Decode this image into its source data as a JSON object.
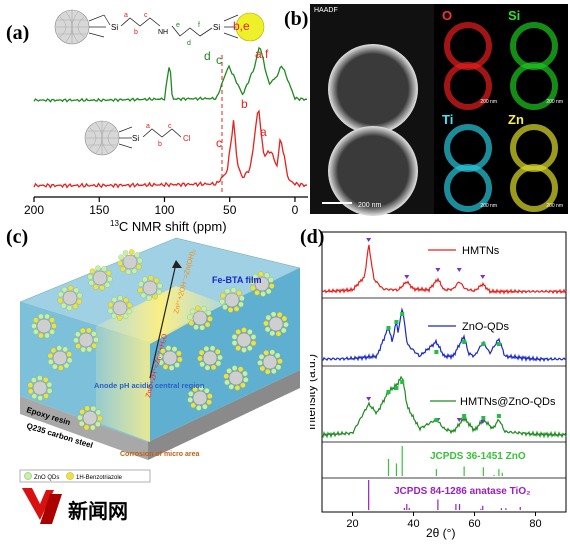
{
  "panel_a": {
    "letter": "(a)",
    "xlabel": "13C NMR shift (ppm)",
    "xlabel_sup": "13",
    "xlabel_main": "C NMR shift (ppm)",
    "ticks": [
      "200",
      "150",
      "100",
      "50",
      "0"
    ],
    "green_labels": {
      "d": "d",
      "c": "c",
      "be": "b,e",
      "af": "a,f"
    },
    "red_labels": {
      "c": "c",
      "b": "b",
      "a": "a"
    },
    "green_struct": {
      "a": "a",
      "b": "b",
      "c": "c",
      "e": "e",
      "d": "d",
      "f": "f",
      "si1": "Si",
      "si2": "Si",
      "nh": "NH"
    },
    "red_struct": {
      "si": "Si",
      "cl": "Cl",
      "a": "a",
      "b": "b",
      "c": "c"
    }
  },
  "panel_b": {
    "letter": "(b)",
    "haadf": "HAADF",
    "scale": "200 nm",
    "maps": [
      {
        "label": "O",
        "color": "#ff2020",
        "scale": "200 nm"
      },
      {
        "label": "Si",
        "color": "#20e020",
        "scale": "200 nm"
      },
      {
        "label": "Ti",
        "color": "#30e0f0",
        "scale": "200 nm"
      },
      {
        "label": "Zn",
        "color": "#f0f030",
        "scale": "200 nm"
      }
    ]
  },
  "panel_c": {
    "letter": "(c)",
    "fe_bta": "Fe-BTA film",
    "reaction1": "Zn²⁺+2OH⁻=Zn(OH)₂",
    "reaction2": "ZnO+2H⁺=Zn²⁺+H₂O",
    "epoxy": "Epoxy resin",
    "steel": "Q235 carbon steel",
    "anode": "Anode pH acidic central region",
    "corrosion": "Corrosion of micro area",
    "legend1": "ZnO QDs",
    "legend2": "1H-Benzotriazole",
    "watermark": "新闻网"
  },
  "panel_d": {
    "letter": "(d)",
    "ylabel": "Intensity (a.u.)",
    "xlabel": "2θ (°)",
    "ticks": [
      "20",
      "40",
      "60",
      "80"
    ],
    "legends": [
      "HMTNs",
      "ZnO-QDs",
      "HMTNs@ZnO-QDs"
    ],
    "ref_zno": "JCPDS 36-1451 ZnO",
    "ref_tio2": "JCPDS 84-1286 anatase TiO₂"
  },
  "colors": {
    "green": "#1e8a1e",
    "red": "#e8201c",
    "blue": "#1a28c8",
    "zno_ref": "#39c339",
    "tio2_ref": "#9a1fc2"
  },
  "chart_data": [
    {
      "type": "line",
      "title": "",
      "xlabel": "13C NMR shift (ppm)",
      "ylabel": "",
      "xlim": [
        200,
        -10
      ],
      "series": [
        {
          "name": "",
          "color": "green",
          "x": [
            200,
            150,
            100,
            96,
            94,
            60,
            51,
            48,
            40,
            31,
            27,
            20,
            14,
            10,
            0,
            -10
          ],
          "y": [
            0.03,
            0.03,
            0.05,
            0.68,
            0.05,
            0.06,
            0.6,
            0.48,
            0.12,
            0.58,
            0.95,
            0.3,
            0.42,
            0.62,
            0.06,
            0.04
          ]
        },
        {
          "name": "",
          "color": "red",
          "x": [
            200,
            150,
            100,
            60,
            52,
            47,
            44,
            40,
            34,
            28,
            24,
            18,
            14,
            11,
            5,
            0,
            -10
          ],
          "y": [
            0.03,
            0.03,
            0.04,
            0.05,
            0.2,
            0.82,
            0.28,
            0.12,
            0.25,
            1.0,
            0.4,
            0.45,
            0.25,
            0.62,
            0.1,
            0.05,
            0.03
          ]
        }
      ]
    },
    {
      "type": "line",
      "title": "",
      "xlabel": "2θ (°)",
      "ylabel": "Intensity (a.u.)",
      "xlim": [
        10,
        90
      ],
      "series": [
        {
          "name": "HMTNs",
          "x": [
            10,
            20,
            24,
            25.3,
            27,
            30,
            35,
            37.8,
            40,
            45,
            48,
            50,
            53,
            55,
            57,
            60,
            62.7,
            65,
            70,
            80,
            90
          ],
          "y": [
            0.05,
            0.08,
            0.35,
            1.0,
            0.3,
            0.1,
            0.08,
            0.25,
            0.1,
            0.08,
            0.3,
            0.08,
            0.1,
            0.25,
            0.1,
            0.06,
            0.2,
            0.05,
            0.05,
            0.05,
            0.05
          ]
        },
        {
          "name": "ZnO-QDs",
          "x": [
            10,
            20,
            28,
            31.8,
            33,
            34.4,
            35,
            36.3,
            38,
            42,
            47.5,
            50,
            53,
            56.6,
            58,
            60,
            62.9,
            65,
            68,
            70,
            80,
            90
          ],
          "y": [
            0.05,
            0.06,
            0.1,
            0.6,
            0.35,
            0.7,
            0.5,
            0.95,
            0.3,
            0.1,
            0.35,
            0.1,
            0.1,
            0.45,
            0.15,
            0.1,
            0.35,
            0.15,
            0.4,
            0.1,
            0.05,
            0.05
          ]
        },
        {
          "name": "HMTNs@ZnO-QDs",
          "x": [
            10,
            20,
            25.3,
            28,
            31.8,
            34.4,
            36.3,
            38,
            42,
            47.5,
            50,
            53,
            56.6,
            60,
            62.9,
            66,
            68,
            70,
            80,
            90
          ],
          "y": [
            0.05,
            0.08,
            0.55,
            0.4,
            0.75,
            0.85,
            1.0,
            0.5,
            0.15,
            0.3,
            0.15,
            0.1,
            0.32,
            0.12,
            0.3,
            0.15,
            0.3,
            0.1,
            0.06,
            0.05
          ]
        },
        {
          "name": "JCPDS 36-1451 ZnO",
          "x": [
            31.8,
            34.4,
            36.3,
            47.5,
            56.6,
            62.9,
            66.4,
            68,
            69.1
          ],
          "y": [
            0.57,
            0.42,
            1.0,
            0.23,
            0.32,
            0.29,
            0.04,
            0.23,
            0.11
          ]
        },
        {
          "name": "JCPDS 84-1286 anatase TiO2",
          "x": [
            25.3,
            37.0,
            37.8,
            38.6,
            48.0,
            53.9,
            55.1,
            62.1,
            62.7,
            68.8,
            70.3,
            75.0
          ],
          "y": [
            1.0,
            0.07,
            0.2,
            0.07,
            0.35,
            0.2,
            0.2,
            0.04,
            0.14,
            0.06,
            0.06,
            0.1
          ]
        }
      ]
    }
  ]
}
